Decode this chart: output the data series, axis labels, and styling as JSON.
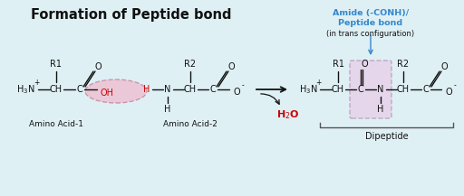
{
  "title": "Formation of Peptide bond",
  "bg_color": "#dff0f5",
  "title_color": "#111111",
  "title_fontsize": 10.5,
  "amide_line1": "Amide (-CONH)/",
  "amide_line2": "Peptide bond",
  "amide_line3": "(in trans configuration)",
  "amide_color": "#3388cc",
  "h2o_color": "#cc0000",
  "highlight_pink_face": "#f0b8cc",
  "highlight_pink_edge": "#c07890",
  "dipeptide_face": "#e8cce8",
  "dipeptide_edge": "#b090b0",
  "amino1_label": "Amino Acid-1",
  "amino2_label": "Amino Acid-2",
  "dipeptide_label": "Dipeptide",
  "text_color": "#111111",
  "bond_color": "#111111",
  "oh_color": "#cc0000",
  "h_red_color": "#cc0000"
}
